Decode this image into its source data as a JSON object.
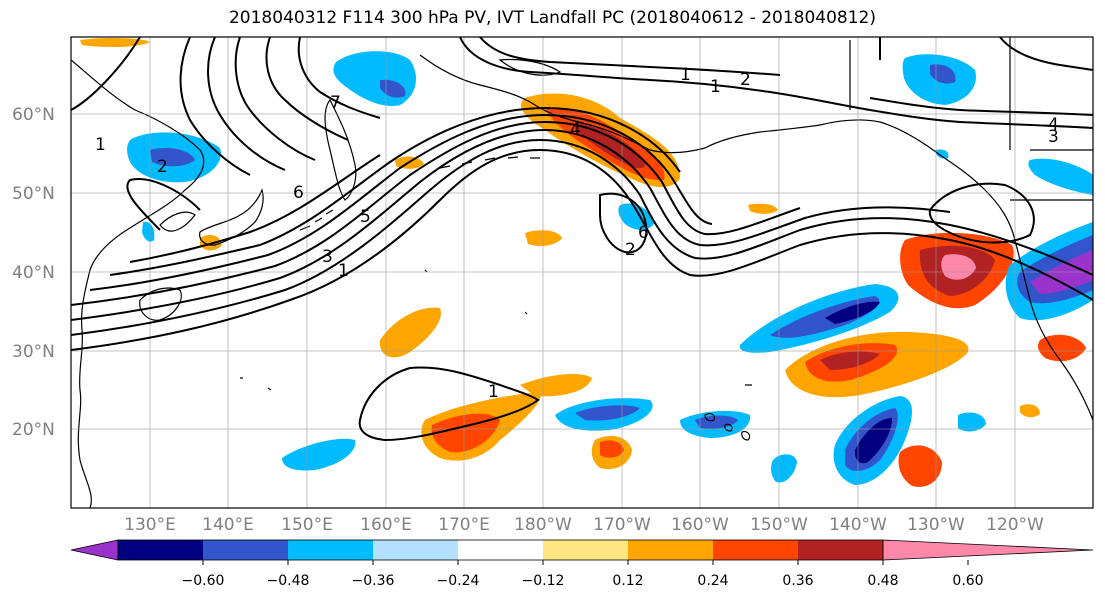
{
  "title": "2018040312 F114 300 hPa PV, IVT Landfall PC (2018040612 - 2018040812)",
  "lat_labels": [
    "60°N",
    "50°N",
    "40°N",
    "30°N",
    "20°N"
  ],
  "lon_labels": [
    "130°E",
    "140°E",
    "150°E",
    "160°E",
    "170°E",
    "180°W",
    "170°W",
    "160°W",
    "150°W",
    "140°W",
    "130°W",
    "120°W"
  ],
  "colorbar": {
    "tick_labels": [
      "−0.60",
      "−0.48",
      "−0.36",
      "−0.24",
      "−0.12",
      "0.12",
      "0.24",
      "0.36",
      "0.48",
      "0.60"
    ],
    "colors": [
      "#9933cc",
      "#000080",
      "#3355cc",
      "#00bbff",
      "#b3e0ff",
      "#ffffff",
      "#ffe680",
      "#ffa500",
      "#ff4500",
      "#b22222",
      "#ff88aa"
    ]
  },
  "contour_labels": [
    "1",
    "2",
    "7",
    "6",
    "5",
    "3",
    "1",
    "4",
    "1",
    "2",
    "1",
    "6",
    "2",
    "4",
    "3",
    "1"
  ]
}
